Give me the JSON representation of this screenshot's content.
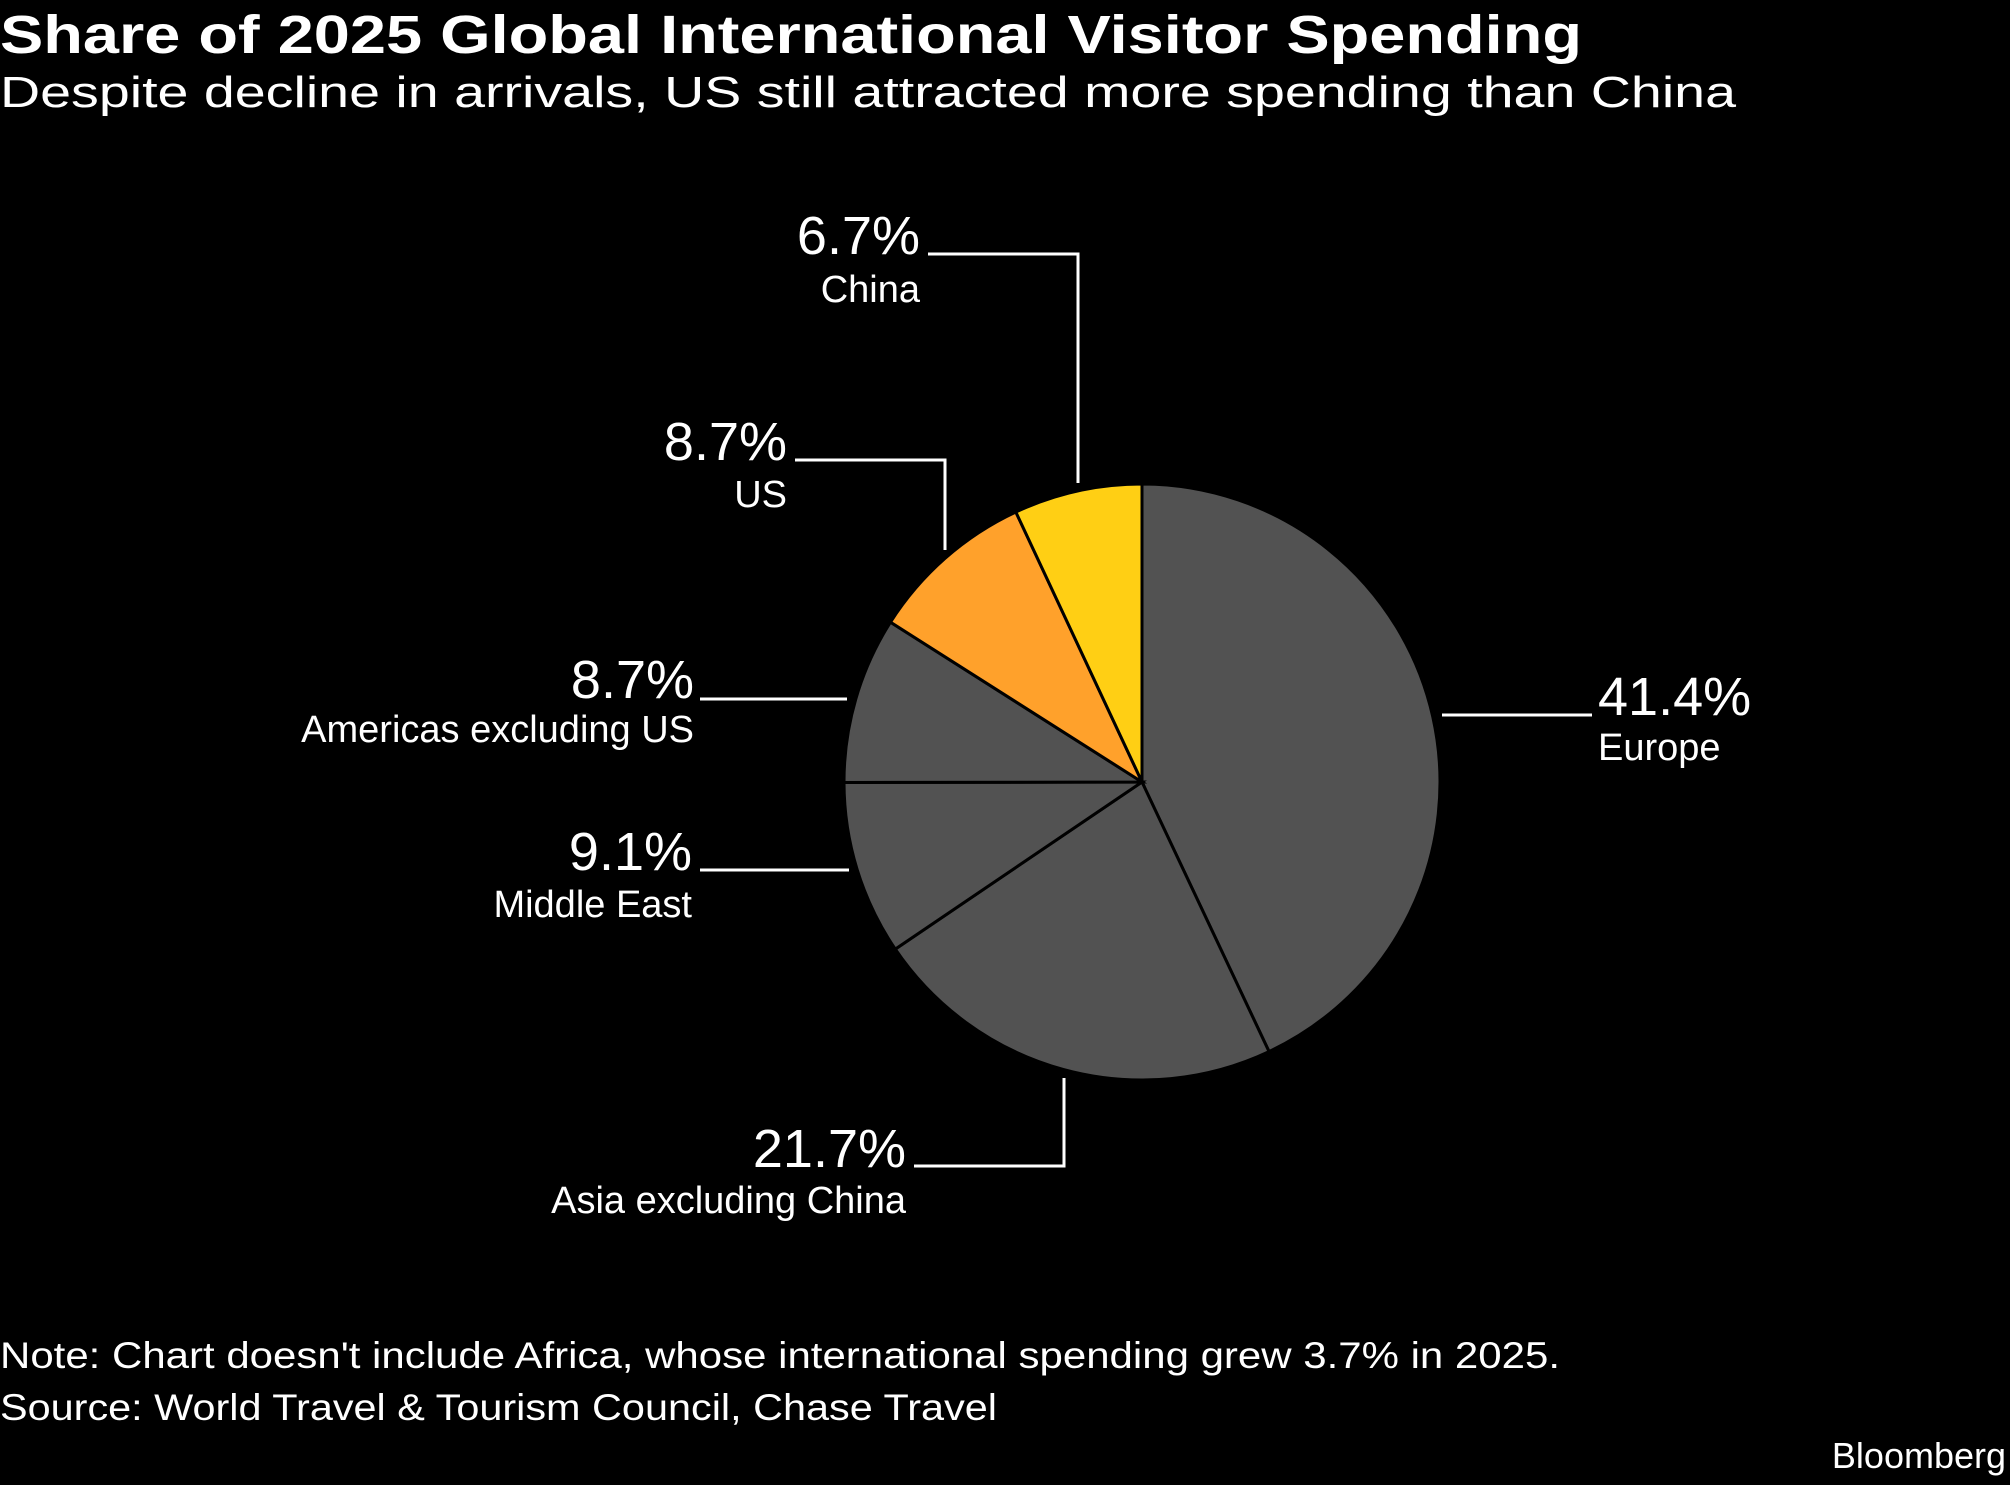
{
  "header": {
    "title": "Share of 2025 Global International Visitor Spending",
    "subtitle": "Despite decline in arrivals, US still attracted more spending than China"
  },
  "chart_data": {
    "type": "pie",
    "title": "Share of 2025 Global International Visitor Spending",
    "subtitle": "Despite decline in arrivals, US still attracted more spending than China",
    "unit": "%",
    "start": "top",
    "direction": "clockwise",
    "slices": [
      {
        "label": "Europe",
        "value": 41.4,
        "value_label": "41.4%",
        "color": "#525252"
      },
      {
        "label": "Asia excluding China",
        "value": 21.7,
        "value_label": "21.7%",
        "color": "#525252"
      },
      {
        "label": "Middle East",
        "value": 9.1,
        "value_label": "9.1%",
        "color": "#525252"
      },
      {
        "label": "Americas excluding US",
        "value": 8.7,
        "value_label": "8.7%",
        "color": "#525252"
      },
      {
        "label": "US",
        "value": 8.7,
        "value_label": "8.7%",
        "color": "#FFA12B"
      },
      {
        "label": "China",
        "value": 6.7,
        "value_label": "6.7%",
        "color": "#FFCF14"
      }
    ]
  },
  "footer": {
    "note": "Note: Chart doesn't include Africa, whose international spending grew 3.7% in 2025.",
    "source": "Source: World Travel & Tourism Council, Chase Travel",
    "logo": "Bloomberg"
  },
  "colors": {
    "background": "#000000",
    "text": "#ffffff",
    "gray_slice": "#525252",
    "us_slice": "#FFA12B",
    "china_slice": "#FFCF14"
  }
}
